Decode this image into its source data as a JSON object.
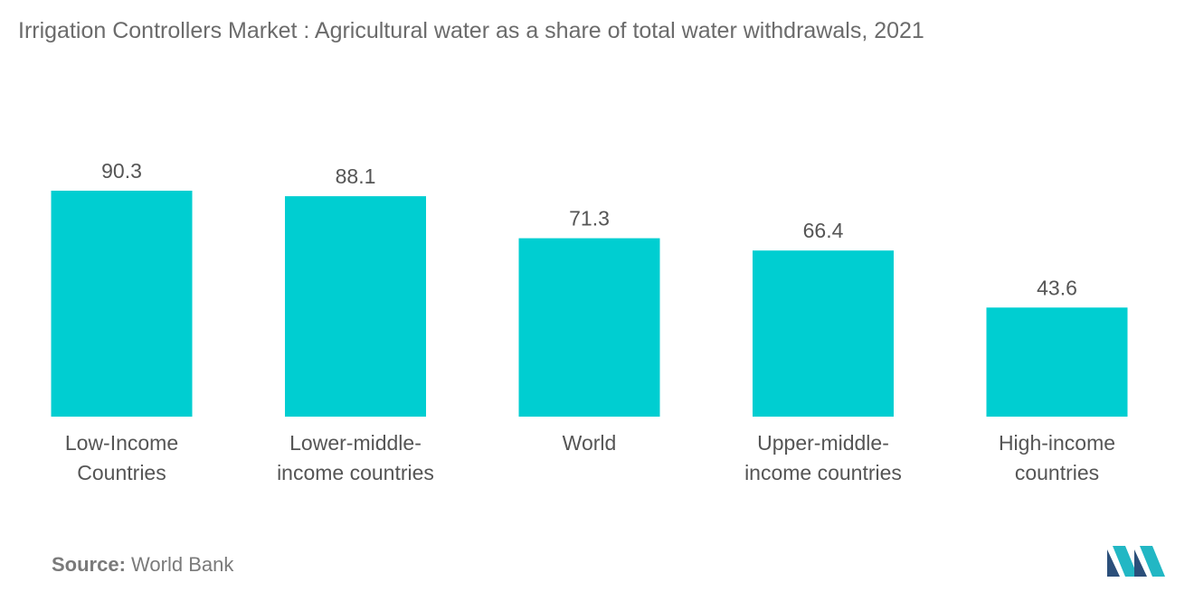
{
  "title": "Irrigation Controllers Market : Agricultural water as a share of total water withdrawals, 2021",
  "source": {
    "label": "Source:",
    "value": "World Bank"
  },
  "colors": {
    "bar": "#00CED1",
    "logo_dark": "#2b4f7a",
    "logo_light": "#22b7c4"
  },
  "chart_data": {
    "type": "bar",
    "title": "Irrigation Controllers Market : Agricultural water as a share of total water withdrawals, 2021",
    "xlabel": "",
    "ylabel": "",
    "ylim": [
      0,
      100
    ],
    "grid": false,
    "legend": "none",
    "categories": [
      [
        "Low-Income",
        "Countries"
      ],
      [
        "Lower-middle-",
        "income countries"
      ],
      [
        "World"
      ],
      [
        "Upper-middle-",
        "income countries"
      ],
      [
        "High-income",
        "countries"
      ]
    ],
    "values": [
      90.3,
      88.1,
      71.3,
      66.4,
      43.6
    ],
    "value_labels": [
      "90.3",
      "88.1",
      "71.3",
      "66.4",
      "43.6"
    ]
  }
}
